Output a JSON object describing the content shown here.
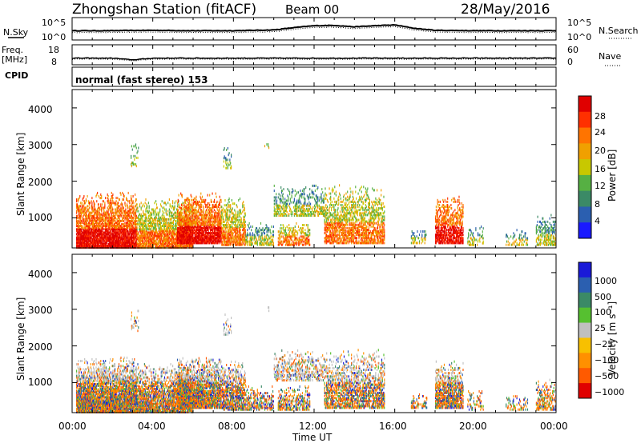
{
  "header": {
    "station": "Zhongshan Station (fitACF)",
    "beam": "Beam 00",
    "date": "28/May/2016"
  },
  "strip_panels": {
    "nsky": {
      "label": "N.Sky",
      "left_ticks": [
        "10^5",
        "10^0"
      ],
      "right_ticks": [
        "10^5",
        "10^0"
      ],
      "right_label": "N.Search"
    },
    "freq": {
      "label_line1": "Freq.",
      "label_line2": "[MHz]",
      "left_ticks": [
        "18",
        "8"
      ],
      "right_ticks": [
        "60",
        "0"
      ],
      "right_label": "Nave"
    },
    "cpid": {
      "label": "CPID",
      "value": "normal (fast stereo) 153"
    }
  },
  "power_panel": {
    "ylabel": "Slant Range [km]",
    "yticks": [
      "4000",
      "3000",
      "2000",
      "1000"
    ],
    "colorbar_label": "Power [dB]",
    "colorbar_ticks": [
      "28",
      "24",
      "20",
      "16",
      "12",
      "8",
      "4"
    ],
    "colors": [
      "#1a1aff",
      "#2b5fb0",
      "#3b8a66",
      "#56b043",
      "#c8c800",
      "#f0a000",
      "#ff7400",
      "#ff3000",
      "#e00000"
    ]
  },
  "velocity_panel": {
    "ylabel": "Slant Range [km]",
    "yticks": [
      "4000",
      "3000",
      "2000",
      "1000"
    ],
    "colorbar_label": "Velocity [m s⁻¹]",
    "colorbar_ticks": [
      "1000",
      "500",
      "100",
      "25",
      "−25",
      "−100",
      "−500",
      "−1000"
    ],
    "colors": [
      "#1a1ad8",
      "#2b5fb0",
      "#3b8a66",
      "#56c030",
      "#c0c0c0",
      "#f8c000",
      "#ff9000",
      "#ff5a00",
      "#e00000"
    ]
  },
  "xaxis": {
    "label": "Time UT",
    "ticks": [
      "00:00",
      "04:00",
      "08:00",
      "12:00",
      "16:00",
      "20:00",
      "00:00"
    ]
  },
  "chart_data": [
    {
      "type": "line",
      "title": "Zhongshan Station (fitACF)",
      "ylabel": "N.Sky",
      "x": [
        0,
        2,
        4,
        6,
        8,
        10,
        11,
        12,
        13,
        14,
        15,
        16,
        17,
        18,
        20,
        22,
        24
      ],
      "series": [
        {
          "name": "N.Sky",
          "values": [
            2.0,
            2.0,
            2.1,
            2.0,
            2.0,
            2.2,
            2.8,
            3.3,
            3.4,
            3.0,
            3.3,
            3.5,
            2.6,
            2.1,
            2.0,
            2.0,
            2.0
          ]
        }
      ]
    },
    {
      "type": "line",
      "ylabel": "Freq. [MHz]",
      "ylim": [
        8,
        18
      ],
      "x": [
        0,
        2,
        3,
        4,
        6,
        8,
        12,
        16,
        20,
        24
      ],
      "series": [
        {
          "name": "Freq.",
          "values": [
            11,
            11,
            10,
            11,
            11,
            11,
            11,
            11,
            11,
            11
          ]
        }
      ]
    },
    {
      "type": "heatmap",
      "title": "Power [dB]",
      "xlabel": "Time UT",
      "ylabel": "Slant Range [km]",
      "xlim": [
        0,
        24
      ],
      "ylim": [
        180,
        4500
      ],
      "color_scale": [
        0,
        32
      ]
    },
    {
      "type": "heatmap",
      "title": "Velocity [m s⁻¹]",
      "xlabel": "Time UT",
      "ylabel": "Slant Range [km]",
      "xlim": [
        0,
        24
      ],
      "ylim": [
        180,
        4500
      ],
      "color_scale": [
        -1000,
        1000
      ]
    }
  ]
}
